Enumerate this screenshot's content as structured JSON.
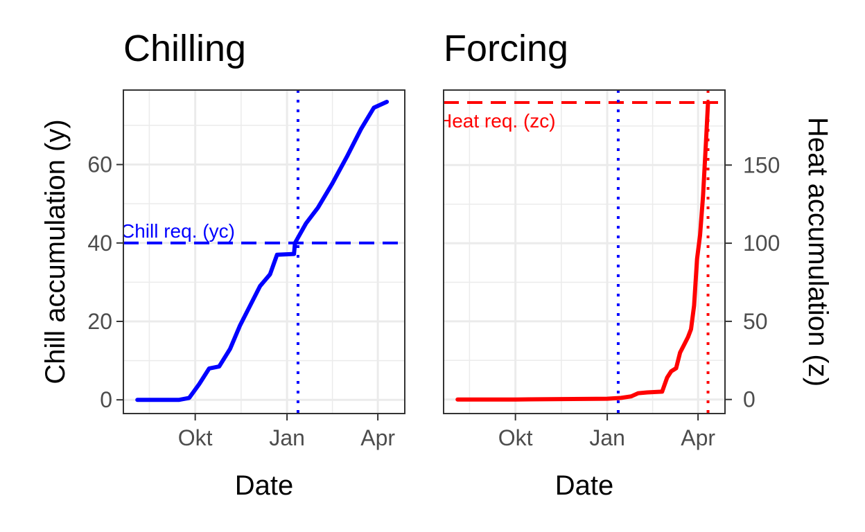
{
  "chart_data": [
    {
      "type": "line",
      "title": "Chilling",
      "xlabel": "Date",
      "ylabel": "Chill accumulation (y)",
      "x_ticks": [
        "Okt",
        "Jan",
        "Apr"
      ],
      "x_tick_dates": [
        "2023-10-01",
        "2024-01-01",
        "2024-04-01"
      ],
      "xlim": [
        "2023-07-21",
        "2024-04-28"
      ],
      "y_ticks": [
        0,
        20,
        40,
        60
      ],
      "ylim": [
        -3.5,
        79
      ],
      "grid": true,
      "line_color": "#0000ff",
      "series": [
        {
          "x": [
            "2023-08-04",
            "2023-08-20",
            "2023-09-05",
            "2023-09-15",
            "2023-09-25",
            "2023-10-05",
            "2023-10-15",
            "2023-10-25",
            "2023-11-05",
            "2023-11-15",
            "2023-11-25",
            "2023-12-05",
            "2023-12-15",
            "2023-12-22",
            "2024-01-08",
            "2024-01-09",
            "2024-01-20",
            "2024-02-01",
            "2024-02-15",
            "2024-03-01",
            "2024-03-15",
            "2024-03-28",
            "2024-04-10"
          ],
          "y": [
            0,
            0,
            0,
            0,
            0.5,
            4,
            8,
            8.5,
            13,
            19,
            24,
            29,
            32,
            37,
            37.2,
            40,
            45,
            49,
            55,
            62,
            69,
            74.5,
            76
          ]
        }
      ],
      "annotations": [
        {
          "type": "hline",
          "y": 40,
          "style": "dashed",
          "color": "#0000ff",
          "label": "Chill req. (yc)"
        },
        {
          "type": "vline",
          "x": "2024-01-12",
          "style": "dotted",
          "color": "#0000ff"
        }
      ]
    },
    {
      "type": "line",
      "title": "Forcing",
      "xlabel": "Date",
      "ylabel": "Heat accumulation (z)",
      "y_axis_position": "right",
      "x_ticks": [
        "Okt",
        "Jan",
        "Apr"
      ],
      "x_tick_dates": [
        "2023-10-01",
        "2024-01-01",
        "2024-04-01"
      ],
      "xlim": [
        "2023-07-21",
        "2024-04-28"
      ],
      "y_ticks": [
        0,
        50,
        100,
        150
      ],
      "ylim": [
        -9,
        198
      ],
      "grid": true,
      "line_color": "#ff0000",
      "series": [
        {
          "x": [
            "2023-08-04",
            "2023-10-01",
            "2024-01-01",
            "2024-01-15",
            "2024-01-25",
            "2024-02-01",
            "2024-02-10",
            "2024-02-25",
            "2024-03-01",
            "2024-03-05",
            "2024-03-10",
            "2024-03-14",
            "2024-03-18",
            "2024-03-22",
            "2024-03-25",
            "2024-03-28",
            "2024-03-31",
            "2024-04-03",
            "2024-04-06",
            "2024-04-09",
            "2024-04-11"
          ],
          "y": [
            0,
            0,
            0.5,
            1,
            2,
            4,
            4.5,
            5,
            14,
            18,
            20,
            30,
            35,
            40,
            45,
            60,
            90,
            105,
            130,
            165,
            190
          ]
        }
      ],
      "annotations": [
        {
          "type": "hline",
          "y": 190,
          "style": "dashed",
          "color": "#ff0000",
          "label": "Heat req. (zc)"
        },
        {
          "type": "vline",
          "x": "2024-01-12",
          "style": "dotted",
          "color": "#0000ff"
        },
        {
          "type": "vline",
          "x": "2024-04-11",
          "style": "dotted",
          "color": "#ff0000"
        }
      ]
    }
  ]
}
